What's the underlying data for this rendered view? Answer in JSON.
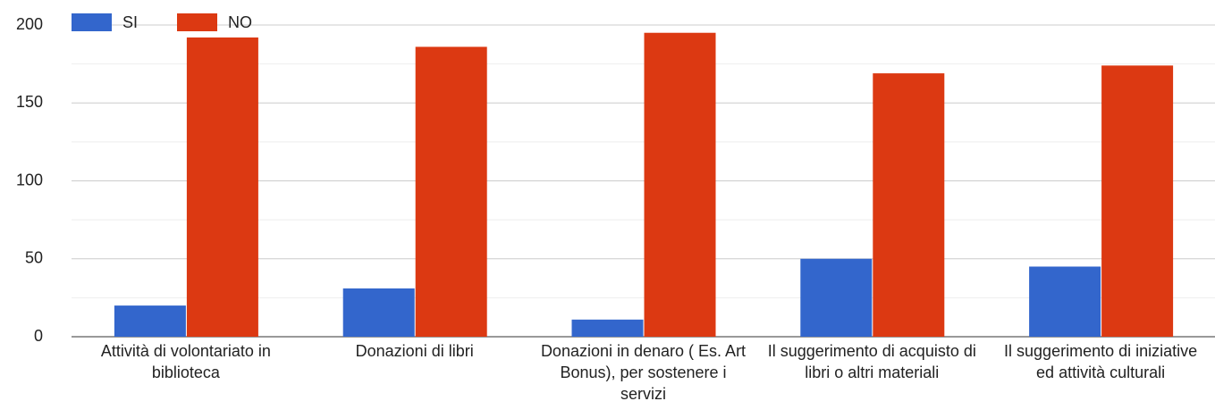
{
  "chart_data": {
    "type": "bar",
    "categories": [
      "Attività di volontariato in biblioteca",
      "Donazioni di libri",
      "Donazioni in denaro ( Es. Art Bonus), per sostenere i servizi",
      "Il suggerimento di acquisto di libri o altri materiali",
      "Il suggerimento di iniziative ed attività culturali"
    ],
    "series": [
      {
        "name": "SI",
        "color": "#3366cc",
        "values": [
          20,
          31,
          11,
          50,
          45
        ]
      },
      {
        "name": "NO",
        "color": "#dc3912",
        "values": [
          192,
          186,
          195,
          169,
          174
        ]
      }
    ],
    "ylim": [
      0,
      200
    ],
    "yticks": [
      0,
      50,
      100,
      150,
      200
    ],
    "minor_yticks": [
      25,
      75,
      125,
      175
    ],
    "grid": true,
    "legend": "top-left"
  }
}
